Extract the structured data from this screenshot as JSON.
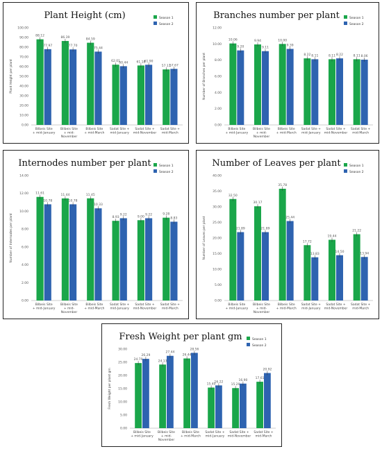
{
  "colors": {
    "season1": "#1aa64a",
    "season2": "#2e63b0"
  },
  "chart_data": [
    {
      "type": "bar",
      "title": "Plant Height (cm)",
      "ylabel": "Plant Height per plant",
      "xlabel": "",
      "ylim": [
        0,
        100
      ],
      "yticks": [
        "0.00",
        "10.00",
        "20.00",
        "30.00",
        "40.00",
        "50.00",
        "60.00",
        "70.00",
        "80.00",
        "90.00",
        "100.00"
      ],
      "categories": [
        [
          "Bilbeis Site",
          "+ mid-January"
        ],
        [
          "Bilbeis Site",
          "+ mid-",
          "November"
        ],
        [
          "Bilbeis Site",
          "+ mid-March"
        ],
        [
          "Sadat Site +",
          "mid-January"
        ],
        [
          "Sadat Site +",
          "mid-November"
        ],
        [
          "Sadat Site +",
          "mid-March"
        ]
      ],
      "legend": [
        "Season 1",
        "Season 2"
      ],
      "legend_position": "top-right",
      "series": [
        {
          "name": "Season 1",
          "values": [
            88.12,
            86.39,
            84.59,
            62.01,
            61.18,
            57.11
          ],
          "labels": [
            "88.12",
            "86.39",
            "84.59",
            "62.01",
            "61.18",
            "57.11"
          ]
        },
        {
          "name": "Season 2",
          "values": [
            77.97,
            77.7,
            75.44,
            60.44,
            61.9,
            57.67
          ],
          "labels": [
            "77.97",
            "77.70",
            "75.44",
            "60.44",
            "61.90",
            "57.67"
          ]
        }
      ]
    },
    {
      "type": "bar",
      "title": "Branches number per plant",
      "ylabel": "Number of Branches per plant",
      "xlabel": "",
      "ylim": [
        0,
        12
      ],
      "yticks": [
        "0.00",
        "2.00",
        "4.00",
        "6.00",
        "8.00",
        "10.00",
        "12.00"
      ],
      "categories": [
        [
          "Bilbeis Site",
          "+ mid-January"
        ],
        [
          "Bilbeis Site",
          "+ mid-",
          "November"
        ],
        [
          "Bilbeis Site",
          "+ mid-March"
        ],
        [
          "Sadat Site +",
          "mid-January"
        ],
        [
          "Sadat Site +",
          "mid-November"
        ],
        [
          "Sadat Site +",
          "mid-March"
        ]
      ],
      "legend": [
        "Season 1",
        "Season 2"
      ],
      "legend_position": "top-right",
      "series": [
        {
          "name": "Season 1",
          "values": [
            10.06,
            9.94,
            10.0,
            8.22,
            8.11,
            8.11
          ],
          "labels": [
            "10.06",
            "9.94",
            "10.00",
            "8.22",
            "8.11",
            "8.11"
          ]
        },
        {
          "name": "Season 2",
          "values": [
            9.2,
            9.11,
            9.39,
            8.11,
            8.22,
            8.06
          ],
          "labels": [
            "9.20",
            "9.11",
            "9.39",
            "8.11",
            "8.22",
            "8.06"
          ]
        }
      ]
    },
    {
      "type": "bar",
      "title": "Internodes number per plant",
      "ylabel": "Number of Internodes per plant",
      "xlabel": "",
      "ylim": [
        0,
        14
      ],
      "yticks": [
        "0.00",
        "2.00",
        "4.00",
        "6.00",
        "8.00",
        "10.00",
        "12.00",
        "14.00"
      ],
      "categories": [
        [
          "Bilbeis Site",
          "+ mid-January"
        ],
        [
          "Bilbeis Site",
          "+ mid-",
          "November"
        ],
        [
          "Bilbeis Site",
          "+ mid-March"
        ],
        [
          "Sadat Site +",
          "mid-January"
        ],
        [
          "Sadat Site +",
          "mid-November"
        ],
        [
          "Sadat Site +",
          "mid-March"
        ]
      ],
      "legend": [
        "Season 1",
        "Season 2"
      ],
      "legend_position": "top-right",
      "series": [
        {
          "name": "Season 1",
          "values": [
            11.61,
            11.44,
            11.45,
            8.93,
            9.0,
            9.28
          ],
          "labels": [
            "11.61",
            "11.44",
            "11.45",
            "8.93",
            "9.00",
            "9.28"
          ]
        },
        {
          "name": "Season 2",
          "values": [
            10.78,
            10.78,
            10.33,
            9.22,
            9.22,
            8.83
          ],
          "labels": [
            "10.78",
            "10.78",
            "10.33",
            "9.22",
            "9.22",
            "8.83"
          ]
        }
      ]
    },
    {
      "type": "bar",
      "title": "Number of Leaves per plant",
      "ylabel": "Number of Leaves per plant",
      "xlabel": "",
      "ylim": [
        0,
        40
      ],
      "yticks": [
        "0.00",
        "5.00",
        "10.00",
        "15.00",
        "20.00",
        "25.00",
        "30.00",
        "35.00",
        "40.00"
      ],
      "categories": [
        [
          "Bilbeis Site",
          "+ mid-January"
        ],
        [
          "Bilbeis Site",
          "+ mid-",
          "November"
        ],
        [
          "Bilbeis Site",
          "+ mid-March"
        ],
        [
          "Sadat Site +",
          "mid-January"
        ],
        [
          "Sadat Site +",
          "mid-November"
        ],
        [
          "Sadat Site +",
          "mid-March"
        ]
      ],
      "legend": [
        "Season 1",
        "Season 2"
      ],
      "legend_position": "top-right",
      "series": [
        {
          "name": "Season 1",
          "values": [
            32.5,
            30.17,
            35.78,
            17.72,
            19.44,
            21.22
          ],
          "labels": [
            "32.50",
            "30.17",
            "35.78",
            "17.72",
            "19.44",
            "21.22"
          ]
        },
        {
          "name": "Season 2",
          "values": [
            21.89,
            21.89,
            25.44,
            13.83,
            14.5,
            13.94
          ],
          "labels": [
            "21.89",
            "21.89",
            "25.44",
            "13.83",
            "14.50",
            "13.94"
          ]
        }
      ]
    },
    {
      "type": "bar",
      "title": "Fresh Weight per plant gm",
      "ylabel": "Fresh Weight per plant gm",
      "xlabel": "",
      "ylim": [
        0,
        30
      ],
      "yticks": [
        "0.00",
        "5.00",
        "10.00",
        "15.00",
        "20.00",
        "25.00",
        "30.00"
      ],
      "categories": [
        [
          "Bilbeis Site",
          "+ mid-January"
        ],
        [
          "Bilbeis Site",
          "+ mid-",
          "November"
        ],
        [
          "Bilbeis Site",
          "+ mid-March"
        ],
        [
          "Sadat Site +",
          "mid-January"
        ],
        [
          "Sadat Site +",
          "mid-November"
        ],
        [
          "Sadat Site +",
          "mid-March"
        ]
      ],
      "legend": [
        "Season 1",
        "Season 2"
      ],
      "legend_position": "top-right",
      "series": [
        {
          "name": "Season 1",
          "values": [
            24.7,
            24.13,
            26.44,
            15.4,
            15.2,
            17.61
          ],
          "labels": [
            "24.70",
            "24.13",
            "26.44",
            "15.40",
            "15.20",
            "17.61"
          ]
        },
        {
          "name": "Season 2",
          "values": [
            26.29,
            27.44,
            28.56,
            16.22,
            16.9,
            20.92
          ],
          "labels": [
            "26.29",
            "27.44",
            "28.56",
            "16.22",
            "16.90",
            "20.92"
          ]
        }
      ]
    }
  ]
}
